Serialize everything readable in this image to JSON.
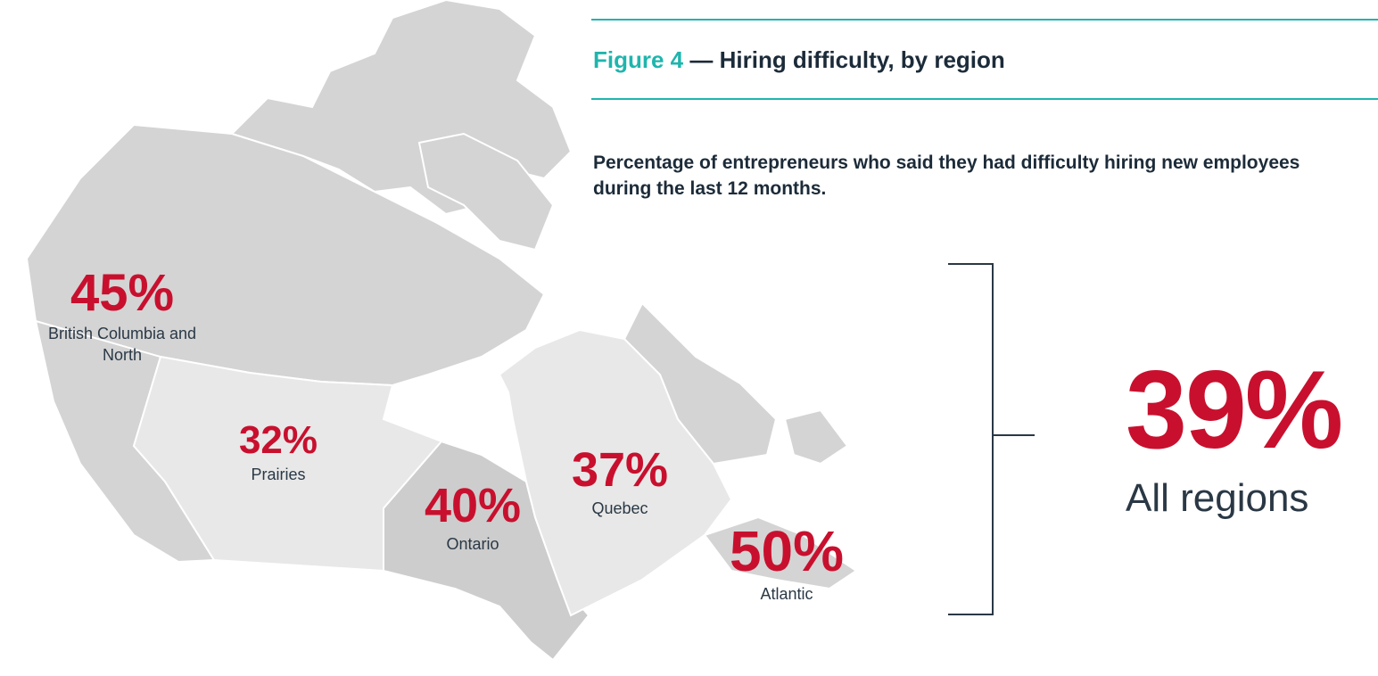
{
  "figure": {
    "label": "Figure 4",
    "title": "— Hiring difficulty, by region"
  },
  "subtitle": "Percentage of entrepreneurs who said they had difficulty hiring new employees during the last 12 months.",
  "regions": [
    {
      "value": "45%",
      "name": "British Columbia and North"
    },
    {
      "value": "32%",
      "name": "Prairies"
    },
    {
      "value": "40%",
      "name": "Ontario"
    },
    {
      "value": "37%",
      "name": "Quebec"
    },
    {
      "value": "50%",
      "name": "Atlantic"
    }
  ],
  "overall": {
    "value": "39%",
    "name": "All regions"
  }
}
